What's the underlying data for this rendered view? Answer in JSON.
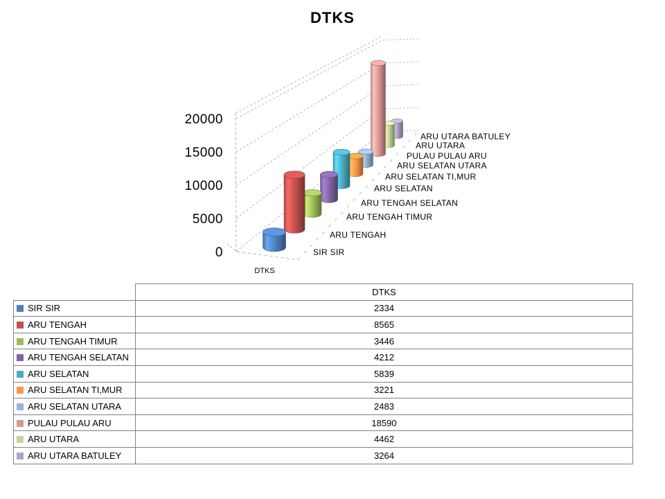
{
  "title": "DTKS",
  "chart_data": {
    "type": "bar",
    "style": "3d-cylinder",
    "title": "DTKS",
    "series_name": "DTKS",
    "categories": [
      "SIR SIR",
      "ARU TENGAH",
      "ARU TENGAH TIMUR",
      "ARU TENGAH SELATAN",
      "ARU SELATAN",
      "ARU SELATAN TI,MUR",
      "ARU SELATAN UTARA",
      "PULAU PULAU ARU",
      "ARU UTARA",
      "ARU UTARA BATULEY"
    ],
    "values": [
      2334,
      8565,
      3446,
      4212,
      5839,
      3221,
      2483,
      18590,
      4462,
      3264
    ],
    "colors": [
      "#4F81BD",
      "#C0504D",
      "#9BBB59",
      "#8064A2",
      "#4BACC6",
      "#F79646",
      "#95B3D7",
      "#D99694",
      "#C3D69B",
      "#B3A2C7"
    ],
    "ytick_values": [
      0,
      5000,
      10000,
      15000,
      20000
    ],
    "ylim": [
      0,
      20000
    ],
    "floor_label": "DTKS",
    "xlabel": "DTKS",
    "ylabel": "",
    "grid": "dashed",
    "legend_position": "table-below"
  },
  "table": {
    "header": "DTKS"
  }
}
